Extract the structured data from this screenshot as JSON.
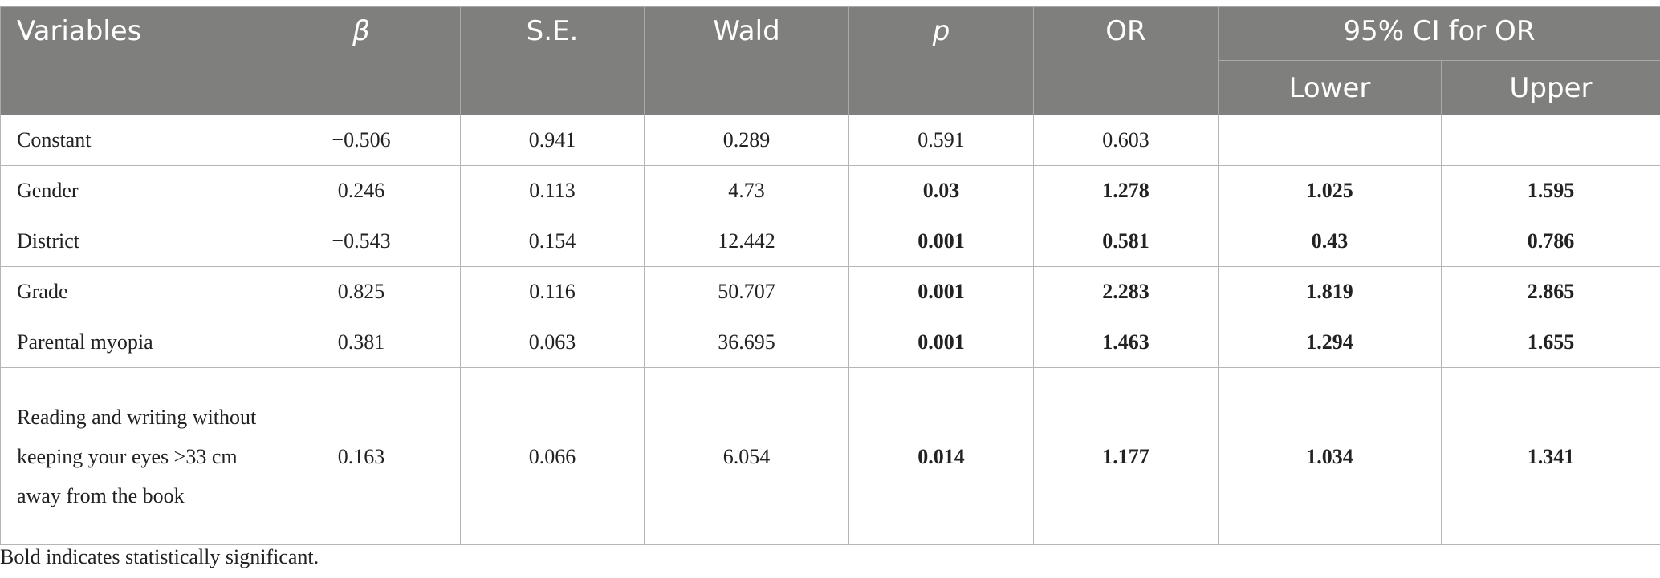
{
  "table": {
    "headers": {
      "variables": "Variables",
      "beta": "β",
      "se": "S.E.",
      "wald": "Wald",
      "p": "p",
      "or": "OR",
      "ci": "95% CI for OR",
      "lower": "Lower",
      "upper": "Upper"
    },
    "rows": [
      {
        "variable": "Constant",
        "beta": "−0.506",
        "se": "0.941",
        "wald": "0.289",
        "p": "0.591",
        "or": "0.603",
        "lower": "",
        "upper": ""
      },
      {
        "variable": "Gender",
        "beta": "0.246",
        "se": "0.113",
        "wald": "4.73",
        "p": "0.03",
        "or": "1.278",
        "lower": "1.025",
        "upper": "1.595"
      },
      {
        "variable": "District",
        "beta": "−0.543",
        "se": "0.154",
        "wald": "12.442",
        "p": "0.001",
        "or": "0.581",
        "lower": "0.43",
        "upper": "0.786"
      },
      {
        "variable": "Grade",
        "beta": "0.825",
        "se": "0.116",
        "wald": "50.707",
        "p": "0.001",
        "or": "2.283",
        "lower": "1.819",
        "upper": "2.865"
      },
      {
        "variable": "Parental myopia",
        "beta": "0.381",
        "se": "0.063",
        "wald": "36.695",
        "p": "0.001",
        "or": "1.463",
        "lower": "1.294",
        "upper": "1.655"
      },
      {
        "variable": "Reading and writing without keeping your eyes >33 cm away from the book",
        "beta": "0.163",
        "se": "0.066",
        "wald": "6.054",
        "p": "0.014",
        "or": "1.177",
        "lower": "1.034",
        "upper": "1.341"
      }
    ]
  },
  "footnote": "Bold indicates statistically significant."
}
